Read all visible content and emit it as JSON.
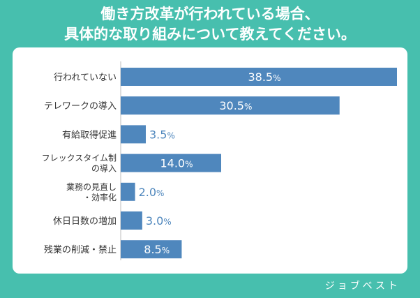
{
  "title_lines": [
    "働き方改革が行われている場合、",
    "具体的な取り組みについて教えてください。"
  ],
  "watermark": "ジョブベスト",
  "colors": {
    "background": "#47bfae",
    "bar": "#4f87bd",
    "label_inside": "#ffffff",
    "label_outside": "#4f87bd",
    "category_text": "#333333"
  },
  "chart_data": {
    "type": "bar",
    "orientation": "horizontal",
    "categories": [
      [
        "行われていない"
      ],
      [
        "テレワークの導入"
      ],
      [
        "有給取得促進"
      ],
      [
        "フレックスタイム制",
        "の導入"
      ],
      [
        "業務の見直し",
        "・効率化"
      ],
      [
        "休日日数の増加"
      ],
      [
        "残業の削減・禁止"
      ]
    ],
    "values": [
      38.5,
      30.5,
      3.5,
      14.0,
      2.0,
      3.0,
      8.5
    ],
    "value_labels": [
      "38.5",
      "30.5",
      "3.5",
      "14.0",
      "2.0",
      "3.0",
      "8.5"
    ],
    "unit": "%",
    "xlim": [
      0,
      38.5
    ],
    "grid": false,
    "legend": "none"
  }
}
